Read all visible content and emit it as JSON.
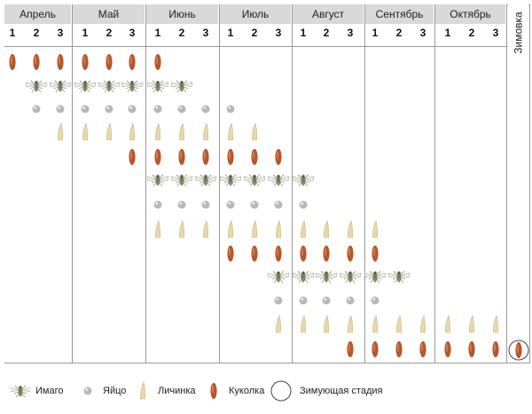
{
  "months": [
    "Апрель",
    "Май",
    "Июнь",
    "Июль",
    "Август",
    "Сентябрь",
    "Октябрь"
  ],
  "decades": [
    "1",
    "2",
    "3"
  ],
  "winter_label": "Зимовка",
  "legend": [
    {
      "stage": "imago",
      "label": "Имаго"
    },
    {
      "stage": "egg",
      "label": "Яйцо"
    },
    {
      "stage": "larva",
      "label": "Личинка"
    },
    {
      "stage": "pupa",
      "label": "Куколка"
    },
    {
      "stage": "winter",
      "label": "Зимующая стадия"
    }
  ],
  "stage_colors": {
    "pupa": "#b5562c",
    "larva": "#e8d8a8",
    "egg": "#b8b8b8",
    "imago": "#8a8a6a"
  },
  "phenology_rows": [
    {
      "stage": "pupa",
      "decades": [
        1,
        2,
        3,
        4,
        5,
        6,
        7
      ]
    },
    {
      "stage": "imago",
      "decades": [
        2,
        3,
        4,
        5,
        6,
        7,
        8
      ]
    },
    {
      "stage": "egg",
      "decades": [
        2,
        3,
        4,
        5,
        6,
        7,
        8,
        9,
        10
      ]
    },
    {
      "stage": "larva",
      "decades": [
        3,
        4,
        5,
        6,
        7,
        8,
        9,
        10,
        11
      ]
    },
    {
      "stage": "pupa",
      "decades": [
        6,
        7,
        8,
        9,
        10,
        11,
        12
      ]
    },
    {
      "stage": "imago",
      "decades": [
        7,
        8,
        9,
        10,
        11,
        12,
        13
      ]
    },
    {
      "stage": "egg",
      "decades": [
        7,
        8,
        9,
        10,
        11,
        12,
        13
      ]
    },
    {
      "stage": "larva",
      "decades": [
        7,
        8,
        9,
        10,
        11,
        12,
        13,
        14,
        15,
        16
      ]
    },
    {
      "stage": "pupa",
      "decades": [
        10,
        11,
        12,
        13,
        14,
        15,
        16
      ]
    },
    {
      "stage": "imago",
      "decades": [
        12,
        13,
        14,
        15,
        16,
        17
      ]
    },
    {
      "stage": "egg",
      "decades": [
        12,
        13,
        14,
        15,
        16
      ]
    },
    {
      "stage": "larva",
      "decades": [
        12,
        13,
        14,
        15,
        16,
        17,
        18,
        19,
        20,
        21
      ]
    },
    {
      "stage": "pupa",
      "decades": [
        15,
        16,
        17,
        18,
        19,
        20,
        21
      ]
    }
  ],
  "wintering_stage": "pupa"
}
